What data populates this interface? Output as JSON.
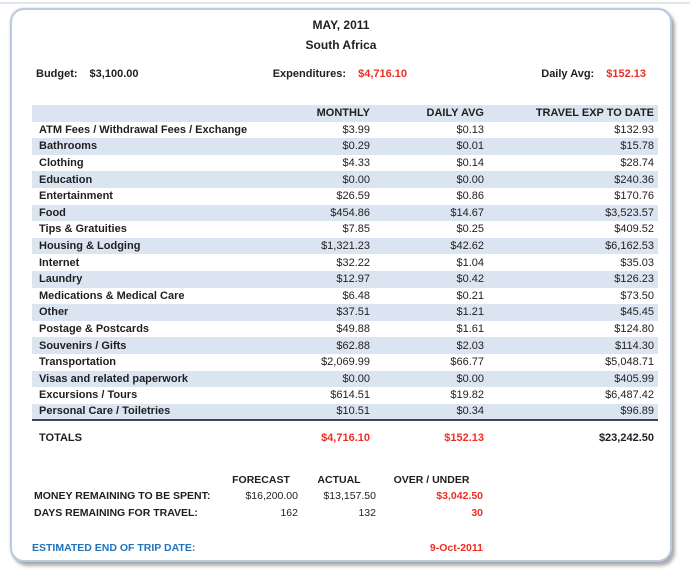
{
  "header": {
    "month": "MAY, 2011",
    "location": "South Africa"
  },
  "summary": {
    "budget_label": "Budget:",
    "budget_value": "$3,100.00",
    "expenditures_label": "Expenditures:",
    "expenditures_value": "$4,716.10",
    "daily_avg_label": "Daily Avg:",
    "daily_avg_value": "$152.13"
  },
  "expense_table": {
    "columns": [
      "MONTHLY",
      "DAILY AVG",
      "TRAVEL EXP TO DATE"
    ],
    "rows": [
      {
        "category": "ATM Fees / Withdrawal Fees / Exchange",
        "monthly": "$3.99",
        "daily_avg": "$0.13",
        "travel_to_date": "$132.93"
      },
      {
        "category": "Bathrooms",
        "monthly": "$0.29",
        "daily_avg": "$0.01",
        "travel_to_date": "$15.78"
      },
      {
        "category": "Clothing",
        "monthly": "$4.33",
        "daily_avg": "$0.14",
        "travel_to_date": "$28.74"
      },
      {
        "category": "Education",
        "monthly": "$0.00",
        "daily_avg": "$0.00",
        "travel_to_date": "$240.36"
      },
      {
        "category": "Entertainment",
        "monthly": "$26.59",
        "daily_avg": "$0.86",
        "travel_to_date": "$170.76"
      },
      {
        "category": "Food",
        "monthly": "$454.86",
        "daily_avg": "$14.67",
        "travel_to_date": "$3,523.57"
      },
      {
        "category": "Tips & Gratuities",
        "monthly": "$7.85",
        "daily_avg": "$0.25",
        "travel_to_date": "$409.52"
      },
      {
        "category": "Housing & Lodging",
        "monthly": "$1,321.23",
        "daily_avg": "$42.62",
        "travel_to_date": "$6,162.53"
      },
      {
        "category": "Internet",
        "monthly": "$32.22",
        "daily_avg": "$1.04",
        "travel_to_date": "$35.03"
      },
      {
        "category": "Laundry",
        "monthly": "$12.97",
        "daily_avg": "$0.42",
        "travel_to_date": "$126.23"
      },
      {
        "category": "Medications & Medical Care",
        "monthly": "$6.48",
        "daily_avg": "$0.21",
        "travel_to_date": "$73.50"
      },
      {
        "category": "Other",
        "monthly": "$37.51",
        "daily_avg": "$1.21",
        "travel_to_date": "$45.45"
      },
      {
        "category": "Postage & Postcards",
        "monthly": "$49.88",
        "daily_avg": "$1.61",
        "travel_to_date": "$124.80"
      },
      {
        "category": "Souvenirs / Gifts",
        "monthly": "$62.88",
        "daily_avg": "$2.03",
        "travel_to_date": "$114.30"
      },
      {
        "category": "Transportation",
        "monthly": "$2,069.99",
        "daily_avg": "$66.77",
        "travel_to_date": "$5,048.71"
      },
      {
        "category": "Visas and related paperwork",
        "monthly": "$0.00",
        "daily_avg": "$0.00",
        "travel_to_date": "$405.99"
      },
      {
        "category": "Excursions / Tours",
        "monthly": "$614.51",
        "daily_avg": "$19.82",
        "travel_to_date": "$6,487.42"
      },
      {
        "category": "Personal Care / Toiletries",
        "monthly": "$10.51",
        "daily_avg": "$0.34",
        "travel_to_date": "$96.89"
      }
    ],
    "totals": {
      "label": "TOTALS",
      "monthly": "$4,716.10",
      "daily_avg": "$152.13",
      "travel_to_date": "$23,242.50"
    }
  },
  "remaining_table": {
    "columns": [
      "FORECAST",
      "ACTUAL",
      "OVER / UNDER"
    ],
    "rows": [
      {
        "label": "MONEY REMAINING TO BE SPENT:",
        "forecast": "$16,200.00",
        "actual": "$13,157.50",
        "over_under": "$3,042.50"
      },
      {
        "label": "DAYS REMAINING FOR TRAVEL:",
        "forecast": "162",
        "actual": "132",
        "over_under": "30"
      }
    ]
  },
  "footer": {
    "label": "ESTIMATED END OF TRIP DATE:",
    "value": "9-Oct-2011"
  },
  "colors": {
    "stripe_blue": "#dbe5f1",
    "negative_red": "#ee2e24",
    "accent_blue": "#2173bd",
    "table_rule": "#3b4756",
    "frame_border": "#bcc9e2"
  }
}
